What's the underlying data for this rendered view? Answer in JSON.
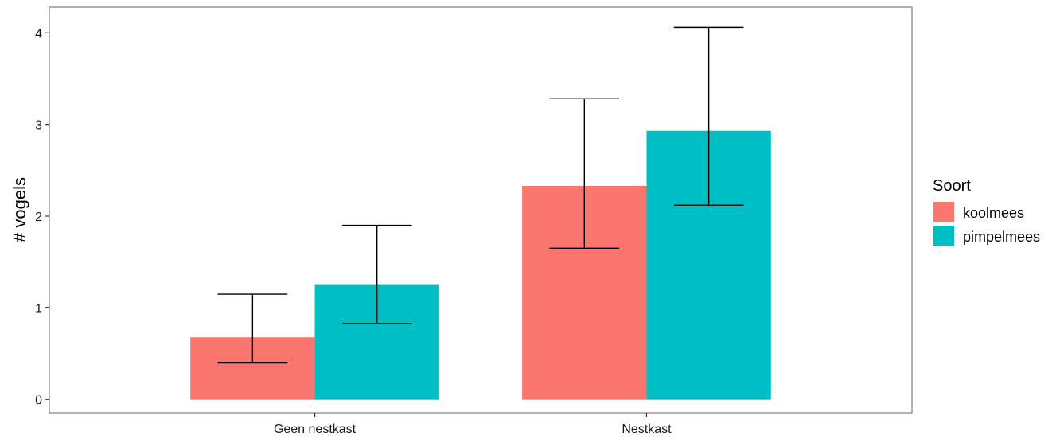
{
  "chart_data": {
    "type": "bar",
    "title": "",
    "xlabel": "",
    "ylabel": "# vogels",
    "categories": [
      "Geen nestkast",
      "Nestkast"
    ],
    "series": [
      {
        "name": "koolmees",
        "color": "#F8766D",
        "values": [
          0.68,
          2.33
        ],
        "error_low": [
          0.4,
          1.65
        ],
        "error_high": [
          1.15,
          3.28
        ]
      },
      {
        "name": "pimpelmees",
        "color": "#00BFC4",
        "values": [
          1.25,
          2.93
        ],
        "error_low": [
          0.83,
          2.12
        ],
        "error_high": [
          1.9,
          4.06
        ]
      }
    ],
    "ylim": [
      -0.15,
      4.28
    ],
    "yticks": [
      0,
      1,
      2,
      3,
      4
    ],
    "grid": false,
    "legend": {
      "title": "Soort",
      "position": "right"
    }
  }
}
